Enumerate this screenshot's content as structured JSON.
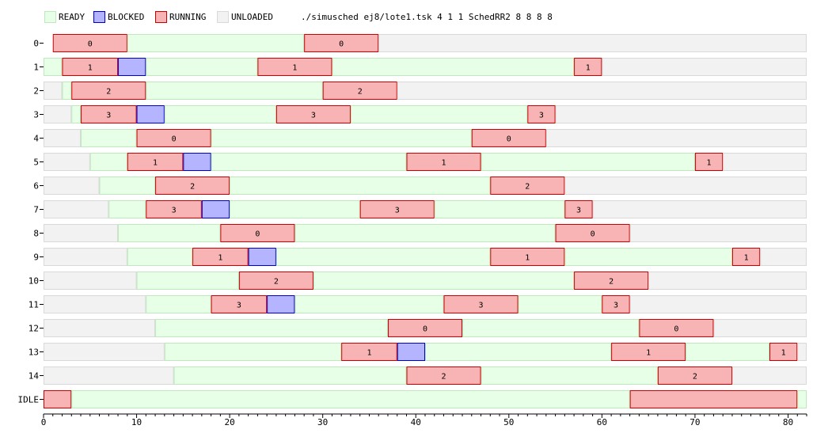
{
  "legend": {
    "ready": {
      "label": "READY",
      "fill": "#e6ffe6",
      "stroke": "#bfe8bf"
    },
    "blocked": {
      "label": "BLOCKED",
      "fill": "#b4b4ff",
      "stroke": "#0000cc"
    },
    "running": {
      "label": "RUNNING",
      "fill": "#f8b4b4",
      "stroke": "#cc0000"
    },
    "unloaded": {
      "label": "UNLOADED",
      "fill": "#f2f2f2",
      "stroke": "#d9d9d9"
    }
  },
  "title": "./simusched ej8/lote1.tsk 4 1 1 SchedRR2 8 8 8 8",
  "chart_data": {
    "type": "gantt",
    "xlim": [
      0,
      82
    ],
    "x_ticks": [
      0,
      10,
      20,
      30,
      40,
      50,
      60,
      70,
      80
    ],
    "rows": [
      {
        "label": "0",
        "segments": [
          {
            "state": "running",
            "start": 1,
            "end": 9,
            "cpu": "0"
          },
          {
            "state": "ready",
            "start": 9,
            "end": 28
          },
          {
            "state": "running",
            "start": 28,
            "end": 36,
            "cpu": "0"
          },
          {
            "state": "unloaded",
            "start": 36,
            "end": 82
          }
        ]
      },
      {
        "label": "1",
        "segments": [
          {
            "state": "ready",
            "start": 0,
            "end": 2
          },
          {
            "state": "running",
            "start": 2,
            "end": 8,
            "cpu": "1"
          },
          {
            "state": "blocked",
            "start": 8,
            "end": 11
          },
          {
            "state": "ready",
            "start": 11,
            "end": 23
          },
          {
            "state": "running",
            "start": 23,
            "end": 31,
            "cpu": "1"
          },
          {
            "state": "ready",
            "start": 31,
            "end": 57
          },
          {
            "state": "running",
            "start": 57,
            "end": 60,
            "cpu": "1"
          },
          {
            "state": "unloaded",
            "start": 60,
            "end": 82
          }
        ]
      },
      {
        "label": "2",
        "segments": [
          {
            "state": "unloaded",
            "start": 0,
            "end": 2
          },
          {
            "state": "ready",
            "start": 2,
            "end": 3
          },
          {
            "state": "running",
            "start": 3,
            "end": 11,
            "cpu": "2"
          },
          {
            "state": "ready",
            "start": 11,
            "end": 30
          },
          {
            "state": "running",
            "start": 30,
            "end": 38,
            "cpu": "2"
          },
          {
            "state": "unloaded",
            "start": 38,
            "end": 82
          }
        ]
      },
      {
        "label": "3",
        "segments": [
          {
            "state": "unloaded",
            "start": 0,
            "end": 3
          },
          {
            "state": "ready",
            "start": 3,
            "end": 4
          },
          {
            "state": "running",
            "start": 4,
            "end": 10,
            "cpu": "3"
          },
          {
            "state": "blocked",
            "start": 10,
            "end": 13
          },
          {
            "state": "ready",
            "start": 13,
            "end": 25
          },
          {
            "state": "running",
            "start": 25,
            "end": 33,
            "cpu": "3"
          },
          {
            "state": "ready",
            "start": 33,
            "end": 52
          },
          {
            "state": "running",
            "start": 52,
            "end": 55,
            "cpu": "3"
          },
          {
            "state": "unloaded",
            "start": 55,
            "end": 82
          }
        ]
      },
      {
        "label": "4",
        "segments": [
          {
            "state": "unloaded",
            "start": 0,
            "end": 4
          },
          {
            "state": "ready",
            "start": 4,
            "end": 10
          },
          {
            "state": "running",
            "start": 10,
            "end": 18,
            "cpu": "0"
          },
          {
            "state": "ready",
            "start": 18,
            "end": 46
          },
          {
            "state": "running",
            "start": 46,
            "end": 54,
            "cpu": "0"
          },
          {
            "state": "unloaded",
            "start": 54,
            "end": 82
          }
        ]
      },
      {
        "label": "5",
        "segments": [
          {
            "state": "unloaded",
            "start": 0,
            "end": 5
          },
          {
            "state": "ready",
            "start": 5,
            "end": 9
          },
          {
            "state": "running",
            "start": 9,
            "end": 15,
            "cpu": "1"
          },
          {
            "state": "blocked",
            "start": 15,
            "end": 18
          },
          {
            "state": "ready",
            "start": 18,
            "end": 39
          },
          {
            "state": "running",
            "start": 39,
            "end": 47,
            "cpu": "1"
          },
          {
            "state": "ready",
            "start": 47,
            "end": 70
          },
          {
            "state": "running",
            "start": 70,
            "end": 73,
            "cpu": "1"
          },
          {
            "state": "unloaded",
            "start": 73,
            "end": 82
          }
        ]
      },
      {
        "label": "6",
        "segments": [
          {
            "state": "unloaded",
            "start": 0,
            "end": 6
          },
          {
            "state": "ready",
            "start": 6,
            "end": 12
          },
          {
            "state": "running",
            "start": 12,
            "end": 20,
            "cpu": "2"
          },
          {
            "state": "ready",
            "start": 20,
            "end": 48
          },
          {
            "state": "running",
            "start": 48,
            "end": 56,
            "cpu": "2"
          },
          {
            "state": "unloaded",
            "start": 56,
            "end": 82
          }
        ]
      },
      {
        "label": "7",
        "segments": [
          {
            "state": "unloaded",
            "start": 0,
            "end": 7
          },
          {
            "state": "ready",
            "start": 7,
            "end": 11
          },
          {
            "state": "running",
            "start": 11,
            "end": 17,
            "cpu": "3"
          },
          {
            "state": "blocked",
            "start": 17,
            "end": 20
          },
          {
            "state": "ready",
            "start": 20,
            "end": 34
          },
          {
            "state": "running",
            "start": 34,
            "end": 42,
            "cpu": "3"
          },
          {
            "state": "ready",
            "start": 42,
            "end": 56
          },
          {
            "state": "running",
            "start": 56,
            "end": 59,
            "cpu": "3"
          },
          {
            "state": "unloaded",
            "start": 59,
            "end": 82
          }
        ]
      },
      {
        "label": "8",
        "segments": [
          {
            "state": "unloaded",
            "start": 0,
            "end": 8
          },
          {
            "state": "ready",
            "start": 8,
            "end": 19
          },
          {
            "state": "running",
            "start": 19,
            "end": 27,
            "cpu": "0"
          },
          {
            "state": "ready",
            "start": 27,
            "end": 55
          },
          {
            "state": "running",
            "start": 55,
            "end": 63,
            "cpu": "0"
          },
          {
            "state": "unloaded",
            "start": 63,
            "end": 82
          }
        ]
      },
      {
        "label": "9",
        "segments": [
          {
            "state": "unloaded",
            "start": 0,
            "end": 9
          },
          {
            "state": "ready",
            "start": 9,
            "end": 16
          },
          {
            "state": "running",
            "start": 16,
            "end": 22,
            "cpu": "1"
          },
          {
            "state": "blocked",
            "start": 22,
            "end": 25
          },
          {
            "state": "ready",
            "start": 25,
            "end": 48
          },
          {
            "state": "running",
            "start": 48,
            "end": 56,
            "cpu": "1"
          },
          {
            "state": "ready",
            "start": 56,
            "end": 74
          },
          {
            "state": "running",
            "start": 74,
            "end": 77,
            "cpu": "1"
          },
          {
            "state": "unloaded",
            "start": 77,
            "end": 82
          }
        ]
      },
      {
        "label": "10",
        "segments": [
          {
            "state": "unloaded",
            "start": 0,
            "end": 10
          },
          {
            "state": "ready",
            "start": 10,
            "end": 21
          },
          {
            "state": "running",
            "start": 21,
            "end": 29,
            "cpu": "2"
          },
          {
            "state": "ready",
            "start": 29,
            "end": 57
          },
          {
            "state": "running",
            "start": 57,
            "end": 65,
            "cpu": "2"
          },
          {
            "state": "unloaded",
            "start": 65,
            "end": 82
          }
        ]
      },
      {
        "label": "11",
        "segments": [
          {
            "state": "unloaded",
            "start": 0,
            "end": 11
          },
          {
            "state": "ready",
            "start": 11,
            "end": 18
          },
          {
            "state": "running",
            "start": 18,
            "end": 24,
            "cpu": "3"
          },
          {
            "state": "blocked",
            "start": 24,
            "end": 27
          },
          {
            "state": "ready",
            "start": 27,
            "end": 43
          },
          {
            "state": "running",
            "start": 43,
            "end": 51,
            "cpu": "3"
          },
          {
            "state": "ready",
            "start": 51,
            "end": 60
          },
          {
            "state": "running",
            "start": 60,
            "end": 63,
            "cpu": "3"
          },
          {
            "state": "unloaded",
            "start": 63,
            "end": 82
          }
        ]
      },
      {
        "label": "12",
        "segments": [
          {
            "state": "unloaded",
            "start": 0,
            "end": 12
          },
          {
            "state": "ready",
            "start": 12,
            "end": 37
          },
          {
            "state": "running",
            "start": 37,
            "end": 45,
            "cpu": "0"
          },
          {
            "state": "ready",
            "start": 45,
            "end": 64
          },
          {
            "state": "running",
            "start": 64,
            "end": 72,
            "cpu": "0"
          },
          {
            "state": "unloaded",
            "start": 72,
            "end": 82
          }
        ]
      },
      {
        "label": "13",
        "segments": [
          {
            "state": "unloaded",
            "start": 0,
            "end": 13
          },
          {
            "state": "ready",
            "start": 13,
            "end": 32
          },
          {
            "state": "running",
            "start": 32,
            "end": 38,
            "cpu": "1"
          },
          {
            "state": "blocked",
            "start": 38,
            "end": 41
          },
          {
            "state": "ready",
            "start": 41,
            "end": 61
          },
          {
            "state": "running",
            "start": 61,
            "end": 69,
            "cpu": "1"
          },
          {
            "state": "ready",
            "start": 69,
            "end": 78
          },
          {
            "state": "running",
            "start": 78,
            "end": 81,
            "cpu": "1"
          },
          {
            "state": "unloaded",
            "start": 81,
            "end": 82
          }
        ]
      },
      {
        "label": "14",
        "segments": [
          {
            "state": "unloaded",
            "start": 0,
            "end": 14
          },
          {
            "state": "ready",
            "start": 14,
            "end": 39
          },
          {
            "state": "running",
            "start": 39,
            "end": 47,
            "cpu": "2"
          },
          {
            "state": "ready",
            "start": 47,
            "end": 66
          },
          {
            "state": "running",
            "start": 66,
            "end": 74,
            "cpu": "2"
          },
          {
            "state": "unloaded",
            "start": 74,
            "end": 82
          }
        ]
      },
      {
        "label": "IDLE",
        "segments": [
          {
            "state": "running",
            "start": 0,
            "end": 3
          },
          {
            "state": "ready",
            "start": 3,
            "end": 63
          },
          {
            "state": "running",
            "start": 63,
            "end": 81
          },
          {
            "state": "ready",
            "start": 81,
            "end": 82
          }
        ]
      }
    ]
  }
}
